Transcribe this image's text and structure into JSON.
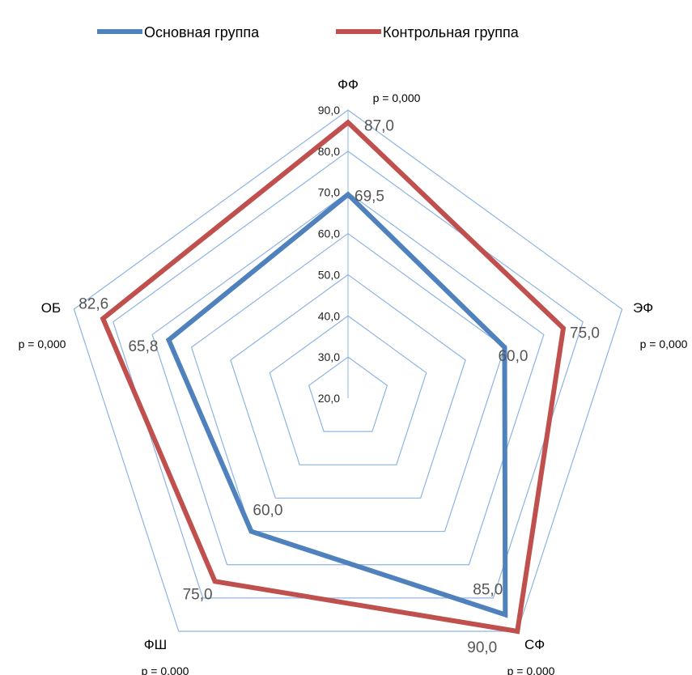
{
  "chart_data": {
    "type": "radar",
    "axes": [
      "ФФ",
      "ЭФ",
      "СФ",
      "ФШ",
      "ОБ"
    ],
    "p_values": [
      "p = 0,000",
      "p = 0,000",
      "p = 0,000",
      "p = 0,000",
      "p = 0,000"
    ],
    "ticks": [
      "20,0",
      "30,0",
      "40,0",
      "50,0",
      "60,0",
      "70,0",
      "80,0",
      "90,0"
    ],
    "range": [
      20,
      90
    ],
    "legend_position": "top",
    "series": [
      {
        "name": "Основная группа",
        "color": "#4F81BD",
        "values": [
          69.5,
          60.0,
          85.0,
          60.0,
          65.8
        ],
        "labels": [
          "69,5",
          "60,0",
          "85,0",
          "60,0",
          "65,8"
        ]
      },
      {
        "name": "Контрольная группа",
        "color": "#C0504D",
        "values": [
          87.0,
          75.0,
          90.0,
          75.0,
          82.6
        ],
        "labels": [
          "87,0",
          "75,0",
          "90,0",
          "75,0",
          "82,6"
        ]
      }
    ]
  }
}
